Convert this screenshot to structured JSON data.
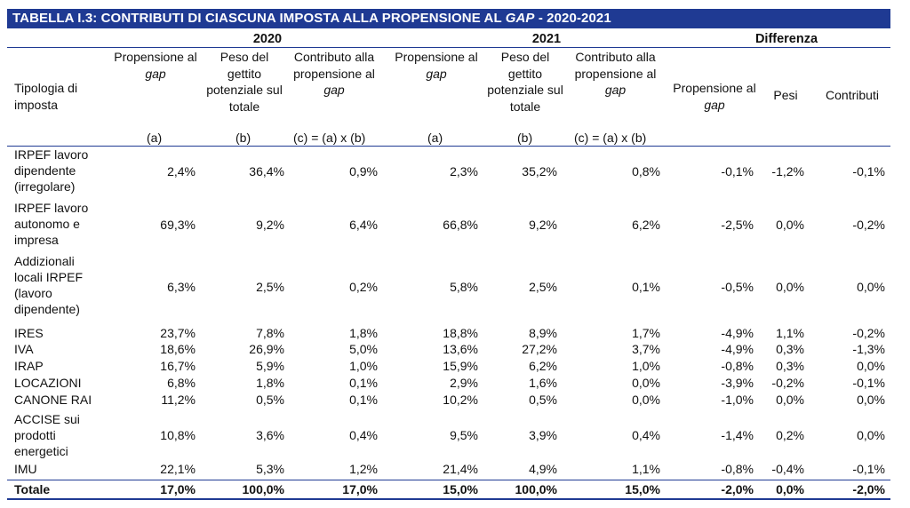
{
  "table": {
    "title": "TABELLA I.3: CONTRIBUTI DI CIASCUNA IMPOSTA ALLA PROPENSIONE AL GAP - 2020-2021",
    "title_parts": {
      "prefix": "TABELLA I.3: CONTRIBUTI DI CIASCUNA IMPOSTA ALLA PROPENSIONE AL ",
      "italic": "GAP",
      "suffix": " - 2020-2021"
    },
    "group_headers": {
      "y2020": "2020",
      "y2021": "2021",
      "diff": "Differenza"
    },
    "row_header": "Tipologia di imposta",
    "col_headers": {
      "propensione_pre": "Propensione al ",
      "gap": "gap",
      "peso": "Peso del gettito potenziale sul totale",
      "contributo_pre": "Contributo alla propensione al ",
      "pesi": "Pesi",
      "contributi": "Contributi"
    },
    "formula_labels": {
      "a": "(a)",
      "b": "(b)",
      "c": "(c) = (a) x (b)"
    },
    "rows": [
      {
        "label": "IRPEF lavoro dipendente (irregolare)",
        "values": [
          "2,4%",
          "36,4%",
          "0,9%",
          "2,3%",
          "35,2%",
          "0,8%",
          "-0,1%",
          "-1,2%",
          "-0,1%"
        ]
      },
      {
        "label": "IRPEF lavoro autonomo e impresa",
        "values": [
          "69,3%",
          "9,2%",
          "6,4%",
          "66,8%",
          "9,2%",
          "6,2%",
          "-2,5%",
          "0,0%",
          "-0,2%"
        ]
      },
      {
        "label": "Addizionali locali IRPEF (lavoro dipendente)",
        "values": [
          "6,3%",
          "2,5%",
          "0,2%",
          "5,8%",
          "2,5%",
          "0,1%",
          "-0,5%",
          "0,0%",
          "0,0%"
        ]
      },
      {
        "label": "IRES",
        "values": [
          "23,7%",
          "7,8%",
          "1,8%",
          "18,8%",
          "8,9%",
          "1,7%",
          "-4,9%",
          "1,1%",
          "-0,2%"
        ]
      },
      {
        "label": "IVA",
        "values": [
          "18,6%",
          "26,9%",
          "5,0%",
          "13,6%",
          "27,2%",
          "3,7%",
          "-4,9%",
          "0,3%",
          "-1,3%"
        ]
      },
      {
        "label": "IRAP",
        "values": [
          "16,7%",
          "5,9%",
          "1,0%",
          "15,9%",
          "6,2%",
          "1,0%",
          "-0,8%",
          "0,3%",
          "0,0%"
        ]
      },
      {
        "label": "LOCAZIONI",
        "values": [
          "6,8%",
          "1,8%",
          "0,1%",
          "2,9%",
          "1,6%",
          "0,0%",
          "-3,9%",
          "-0,2%",
          "-0,1%"
        ]
      },
      {
        "label": "CANONE RAI",
        "values": [
          "11,2%",
          "0,5%",
          "0,1%",
          "10,2%",
          "0,5%",
          "0,0%",
          "-1,0%",
          "0,0%",
          "0,0%"
        ]
      },
      {
        "label": "ACCISE sui prodotti energetici",
        "values": [
          "10,8%",
          "3,6%",
          "0,4%",
          "9,5%",
          "3,9%",
          "0,4%",
          "-1,4%",
          "0,2%",
          "0,0%"
        ]
      },
      {
        "label": "IMU",
        "values": [
          "22,1%",
          "5,3%",
          "1,2%",
          "21,4%",
          "4,9%",
          "1,1%",
          "-0,8%",
          "-0,4%",
          "-0,1%"
        ]
      }
    ],
    "total": {
      "label": "Totale",
      "values": [
        "17,0%",
        "100,0%",
        "17,0%",
        "15,0%",
        "100,0%",
        "15,0%",
        "-2,0%",
        "0,0%",
        "-2,0%"
      ]
    }
  }
}
